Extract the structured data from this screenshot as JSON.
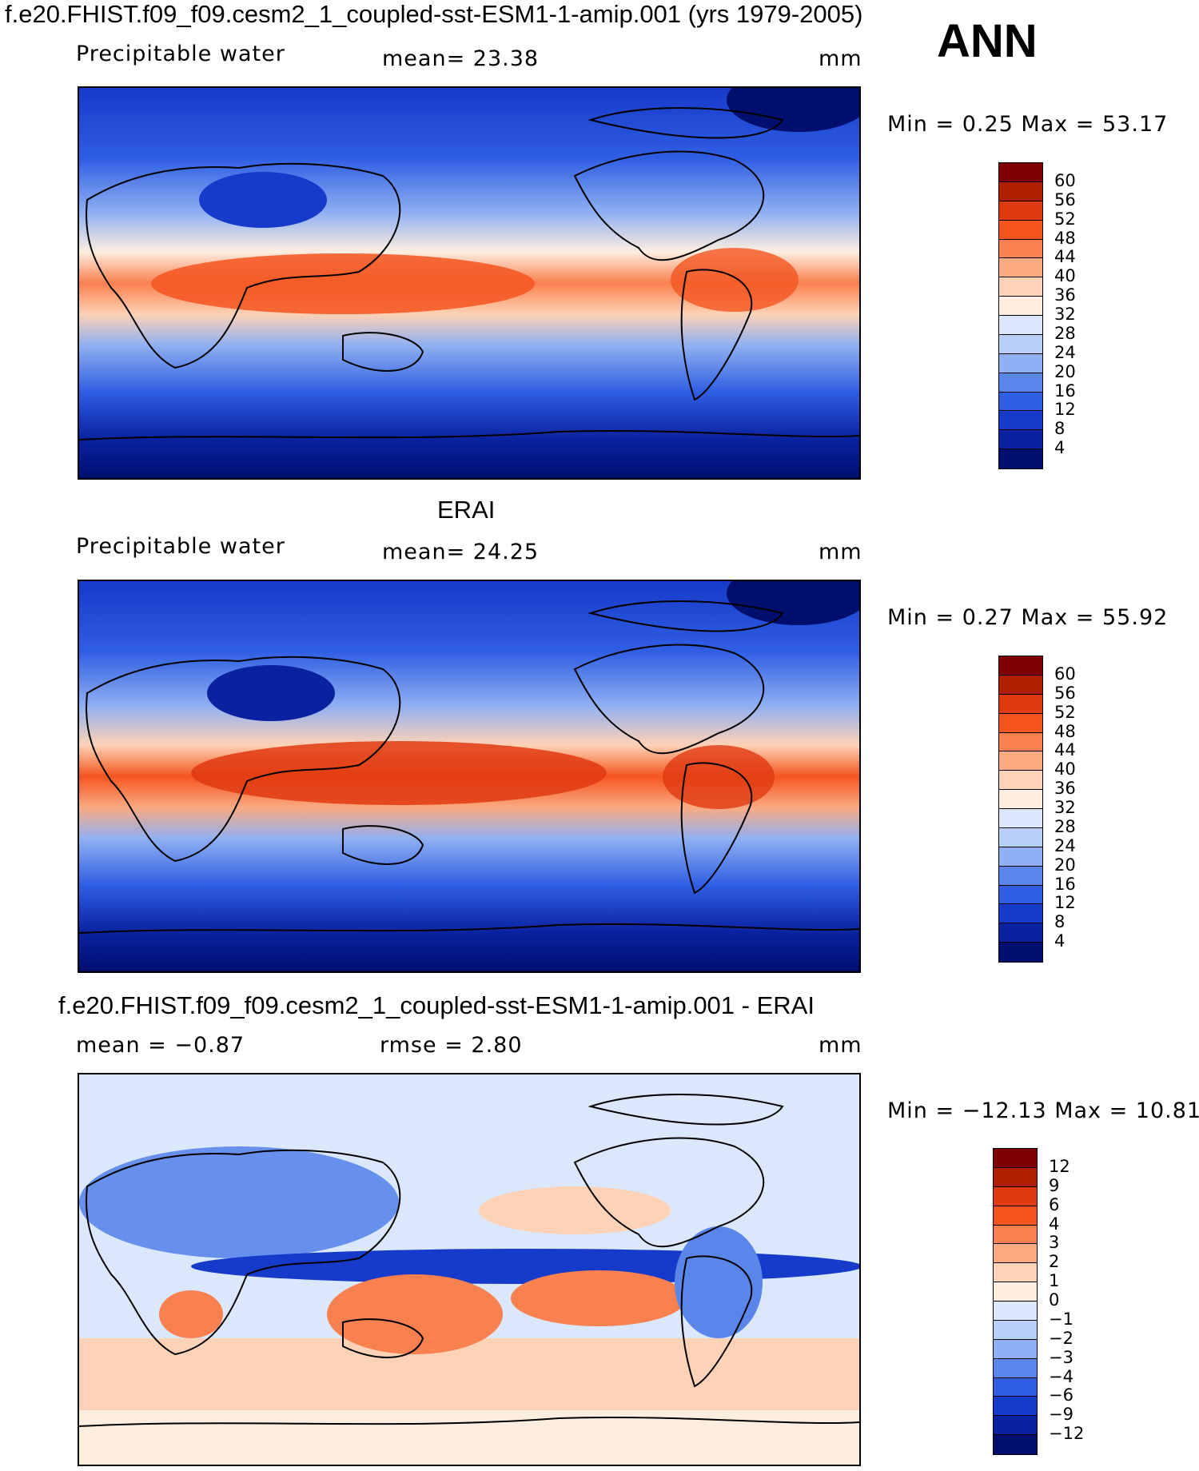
{
  "header": {
    "title": "f.e20.FHIST.f09_f09.cesm2_1_coupled-sst-ESM1-1-amip.001 (yrs 1979-2005)",
    "season": "ANN"
  },
  "panels": [
    {
      "title": "",
      "variable": "Precipitable  water",
      "stat_text": "mean=   23.38",
      "units": "mm",
      "minmax": "Min  =     0.25  Max  =    53.17",
      "colorbar": {
        "labels": [
          "60",
          "56",
          "52",
          "48",
          "44",
          "40",
          "36",
          "32",
          "28",
          "24",
          "20",
          "16",
          "12",
          "8",
          "4"
        ],
        "colors": [
          "#7f0000",
          "#b02000",
          "#e03a10",
          "#f4551f",
          "#f9804f",
          "#fbaa82",
          "#fed2b6",
          "#fdeee0",
          "#dbe8fb",
          "#b8cff7",
          "#8fb0f2",
          "#5a86ea",
          "#2f5ee3",
          "#163ac9",
          "#0a22a0",
          "#000e6e"
        ]
      }
    },
    {
      "title": "ERAI",
      "variable": "Precipitable  water",
      "stat_text": "mean=   24.25",
      "units": "mm",
      "minmax": "Min  =     0.27  Max  =    55.92",
      "colorbar": {
        "labels": [
          "60",
          "56",
          "52",
          "48",
          "44",
          "40",
          "36",
          "32",
          "28",
          "24",
          "20",
          "16",
          "12",
          "8",
          "4"
        ],
        "colors": [
          "#7f0000",
          "#b02000",
          "#e03a10",
          "#f4551f",
          "#f9804f",
          "#fbaa82",
          "#fed2b6",
          "#fdeee0",
          "#dbe8fb",
          "#b8cff7",
          "#8fb0f2",
          "#5a86ea",
          "#2f5ee3",
          "#163ac9",
          "#0a22a0",
          "#000e6e"
        ]
      }
    },
    {
      "title": "f.e20.FHIST.f09_f09.cesm2_1_coupled-sst-ESM1-1-amip.001 - ERAI",
      "variable": "mean  =     −0.87",
      "stat_text": "rmse  =      2.80",
      "units": "mm",
      "minmax": "Min  =  −12.13  Max  =     10.81",
      "colorbar": {
        "labels": [
          "12",
          "9",
          "6",
          "4",
          "3",
          "2",
          "1",
          "0",
          "−1",
          "−2",
          "−3",
          "−4",
          "−6",
          "−9",
          "−12"
        ],
        "colors": [
          "#7f0000",
          "#b02000",
          "#e03a10",
          "#f4551f",
          "#f9804f",
          "#fbaa82",
          "#fed2b6",
          "#fdeee0",
          "#dbe8fb",
          "#b8cff7",
          "#8fb0f2",
          "#5a86ea",
          "#2f5ee3",
          "#163ac9",
          "#0a22a0",
          "#000e6e"
        ]
      }
    }
  ]
}
